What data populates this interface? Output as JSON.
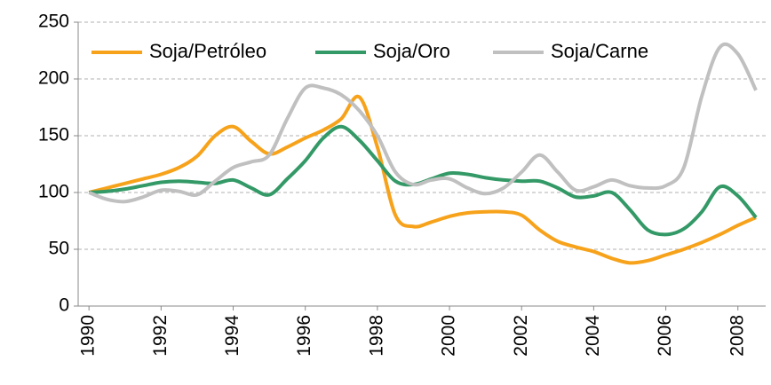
{
  "chart_data": {
    "type": "line",
    "x": [
      1990,
      1990.5,
      1991,
      1991.5,
      1992,
      1992.5,
      1993,
      1993.5,
      1994,
      1994.5,
      1995,
      1995.5,
      1996,
      1996.5,
      1997,
      1997.5,
      1998,
      1998.5,
      1999,
      1999.5,
      2000,
      2000.5,
      2001,
      2001.5,
      2002,
      2002.5,
      2003,
      2003.5,
      2004,
      2004.5,
      2005,
      2005.5,
      2006,
      2006.5,
      2007,
      2007.5,
      2008,
      2008.5
    ],
    "series": [
      {
        "name": "Soja/Petróleo",
        "color": "#f7a21b",
        "values": [
          100,
          104,
          108,
          112,
          116,
          122,
          132,
          150,
          158,
          145,
          134,
          140,
          148,
          155,
          165,
          184,
          140,
          80,
          70,
          74,
          79,
          82,
          83,
          83,
          80,
          67,
          57,
          52,
          48,
          42,
          38,
          40,
          45,
          50,
          56,
          63,
          71,
          78
        ]
      },
      {
        "name": "Soja/Oro",
        "color": "#339966",
        "values": [
          100,
          101,
          103,
          106,
          109,
          110,
          109,
          108,
          111,
          104,
          98,
          112,
          128,
          148,
          158,
          146,
          128,
          110,
          107,
          112,
          117,
          116,
          113,
          111,
          110,
          110,
          104,
          96,
          97,
          100,
          85,
          67,
          63,
          68,
          83,
          105,
          97,
          78
        ]
      },
      {
        "name": "Soja/Carne",
        "color": "#c0c0c0",
        "values": [
          100,
          94,
          92,
          96,
          102,
          101,
          98,
          110,
          122,
          127,
          133,
          165,
          192,
          192,
          186,
          172,
          150,
          118,
          107,
          111,
          112,
          104,
          99,
          104,
          118,
          133,
          118,
          102,
          105,
          111,
          106,
          104,
          106,
          122,
          185,
          228,
          222,
          190
        ]
      }
    ],
    "xlim": [
      1989.7,
      2008.77
    ],
    "xticks": [
      1990,
      1992,
      1994,
      1996,
      1998,
      2000,
      2002,
      2004,
      2006,
      2008
    ],
    "ylim": [
      0,
      250
    ],
    "yticks": [
      0,
      50,
      100,
      150,
      200,
      250
    ],
    "grid": true,
    "legend": "top-left"
  }
}
